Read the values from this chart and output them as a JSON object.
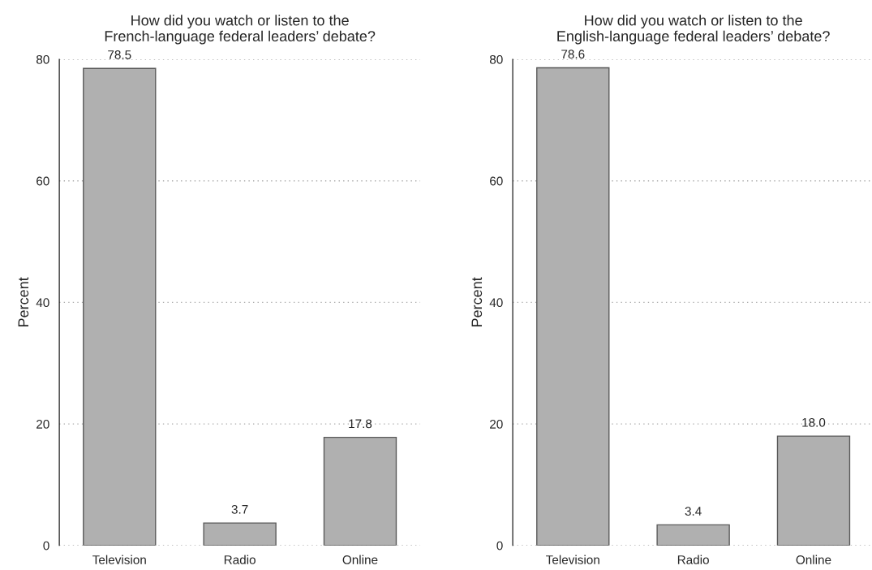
{
  "chart_data": [
    {
      "type": "bar",
      "title": "How did you watch or listen to the\nFrench-language federal leaders’ debate?",
      "ylabel": "Percent",
      "categories": [
        "Television",
        "Radio",
        "Online"
      ],
      "values": [
        78.5,
        3.7,
        17.8
      ],
      "value_labels": [
        "78.5",
        "3.7",
        "17.8"
      ],
      "color": "#b0b0b0",
      "ylim": [
        0,
        80
      ],
      "yticks": [
        0,
        20,
        40,
        60,
        80
      ],
      "grid": "y"
    },
    {
      "type": "bar",
      "title": "How did you watch or listen to the\nEnglish-language federal leaders’ debate?",
      "ylabel": "Percent",
      "categories": [
        "Television",
        "Radio",
        "Online"
      ],
      "values": [
        78.6,
        3.4,
        18.0
      ],
      "value_labels": [
        "78.6",
        "3.4",
        "18.0"
      ],
      "color": "#b0b0b0",
      "ylim": [
        0,
        80
      ],
      "yticks": [
        0,
        20,
        40,
        60,
        80
      ],
      "grid": "y"
    }
  ]
}
